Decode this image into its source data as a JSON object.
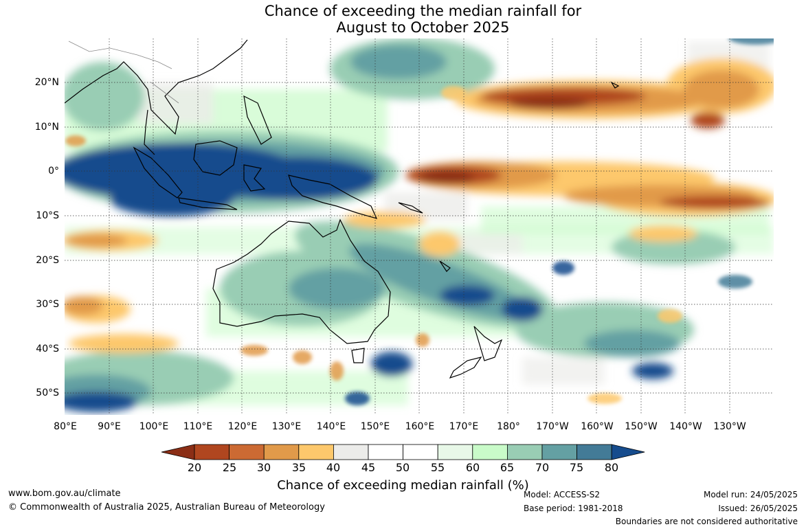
{
  "title": {
    "line1": "Chance of exceeding the median rainfall for",
    "line2": "August to October 2025"
  },
  "map": {
    "lat_labels": [
      "20°N",
      "10°N",
      "0°",
      "10°S",
      "20°S",
      "30°S",
      "40°S",
      "50°S"
    ],
    "lon_labels": [
      "80°E",
      "90°E",
      "100°E",
      "110°E",
      "120°E",
      "130°E",
      "140°E",
      "150°E",
      "160°E",
      "170°E",
      "180°",
      "170°W",
      "160°W",
      "150°W",
      "140°W",
      "130°W"
    ]
  },
  "colorbar": {
    "ticks": [
      "20",
      "25",
      "30",
      "35",
      "40",
      "45",
      "50",
      "55",
      "60",
      "65",
      "70",
      "75",
      "80"
    ],
    "colors": [
      "#8b2e16",
      "#b0461f",
      "#cc6a33",
      "#e19a4a",
      "#fdc86c",
      "#ececea",
      "#ffffff",
      "#ffffff",
      "#e8f8e8",
      "#c9fbc9",
      "#99cdb4",
      "#64a0a3",
      "#437b97",
      "#164c8d"
    ],
    "label": "Chance of exceeding median rainfall (%)"
  },
  "footer": {
    "website": "www.bom.gov.au/climate",
    "copyright": "© Commonwealth of Australia 2025, Australian Bureau of Meteorology",
    "model": "Model: ACCESS-S2",
    "base_period": "Base period: 1981-2018",
    "model_run": "Model run: 24/05/2025",
    "issued": "Issued: 26/05/2025",
    "disclaimer": "Boundaries are not considered authoritative"
  }
}
